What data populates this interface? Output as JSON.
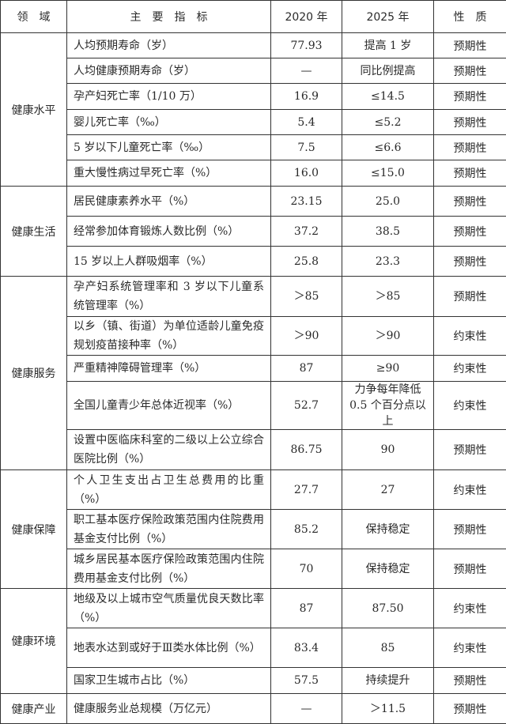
{
  "header": {
    "area": "领　域",
    "indicator": "主　要　指　标",
    "y2020": "2020 年",
    "y2025": "2025 年",
    "nature": "性　质"
  },
  "groups": [
    {
      "area": "健康水平",
      "rows": [
        {
          "indicator": "人均预期寿命（岁）",
          "y2020": "77.93",
          "y2025": "提高 1 岁",
          "nature": "预期性"
        },
        {
          "indicator": "人均健康预期寿命（岁）",
          "y2020": "—",
          "y2025": "同比例提高",
          "nature": "预期性"
        },
        {
          "indicator": "孕产妇死亡率（1/10 万）",
          "y2020": "16.9",
          "y2025": "≤14.5",
          "nature": "预期性"
        },
        {
          "indicator": "婴儿死亡率（‰）",
          "y2020": "5.4",
          "y2025": "≤5.2",
          "nature": "预期性"
        },
        {
          "indicator": "5 岁以下儿童死亡率（‰）",
          "y2020": "7.5",
          "y2025": "≤6.6",
          "nature": "预期性"
        },
        {
          "indicator": "重大慢性病过早死亡率（%）",
          "y2020": "16.0",
          "y2025": "≤15.0",
          "nature": "预期性"
        }
      ]
    },
    {
      "area": "健康生活",
      "rows": [
        {
          "indicator": "居民健康素养水平（%）",
          "y2020": "23.15",
          "y2025": "25.0",
          "nature": "预期性"
        },
        {
          "indicator": "经常参加体育锻炼人数比例（%）",
          "y2020": "37.2",
          "y2025": "38.5",
          "nature": "预期性"
        },
        {
          "indicator": "15 岁以上人群吸烟率（%）",
          "y2020": "25.8",
          "y2025": "23.3",
          "nature": "预期性"
        }
      ]
    },
    {
      "area": "健康服务",
      "rows": [
        {
          "indicator": "孕产妇系统管理率和 3 岁以下儿童系统管理率（%）",
          "y2020": "＞85",
          "y2025": "＞85",
          "nature": "预期性"
        },
        {
          "indicator": "以乡（镇、街道）为单位适龄儿童免疫规划疫苗接种率（%）",
          "y2020": "＞90",
          "y2025": "＞90",
          "nature": "约束性"
        },
        {
          "indicator": "严重精神障碍管理率（%）",
          "y2020": "87",
          "y2025": "≥90",
          "nature": "约束性"
        },
        {
          "indicator": "全国儿童青少年总体近视率（%）",
          "y2020": "52.7",
          "y2025": "力争每年降低 0.5 个百分点以上",
          "nature": "约束性"
        },
        {
          "indicator": "设置中医临床科室的二级以上公立综合医院比例（%）",
          "y2020": "86.75",
          "y2025": "90",
          "nature": "预期性"
        }
      ]
    },
    {
      "area": "健康保障",
      "rows": [
        {
          "indicator": "个人卫生支出占卫生总费用的比重（%）",
          "y2020": "27.7",
          "y2025": "27",
          "nature": "约束性"
        },
        {
          "indicator": "职工基本医疗保险政策范围内住院费用基金支付比例（%）",
          "y2020": "85.2",
          "y2025": "保持稳定",
          "nature": "预期性"
        },
        {
          "indicator": "城乡居民基本医疗保险政策范围内住院费用基金支付比例（%）",
          "y2020": "70",
          "y2025": "保持稳定",
          "nature": "预期性"
        }
      ]
    },
    {
      "area": "健康环境",
      "rows": [
        {
          "indicator": "地级及以上城市空气质量优良天数比率（%）",
          "y2020": "87",
          "y2025": "87.50",
          "nature": "约束性"
        },
        {
          "indicator": "地表水达到或好于Ⅲ类水体比例（%）",
          "y2020": "83.4",
          "y2025": "85",
          "nature": "约束性"
        },
        {
          "indicator": "国家卫生城市占比（%）",
          "y2020": "57.5",
          "y2025": "持续提升",
          "nature": "预期性"
        }
      ]
    },
    {
      "area": "健康产业",
      "rows": [
        {
          "indicator": "健康服务业总规模（万亿元）",
          "y2020": "—",
          "y2025": "＞11.5",
          "nature": "预期性"
        }
      ]
    }
  ]
}
